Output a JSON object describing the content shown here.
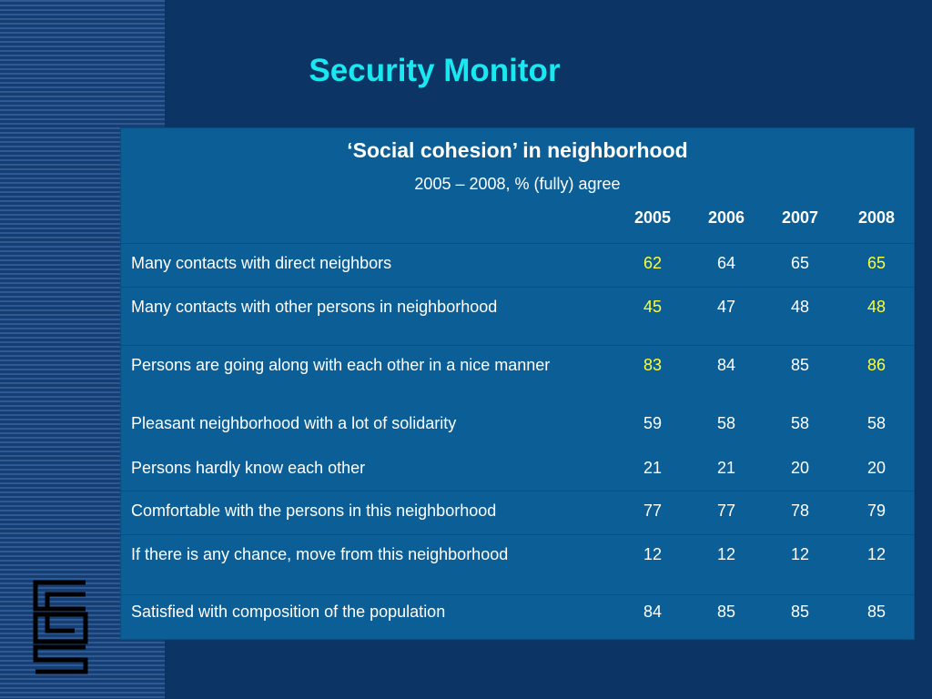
{
  "slide": {
    "title": "Security Monitor"
  },
  "table": {
    "title": "‘Social cohesion’ in neighborhood",
    "subtitle": "2005 – 2008, % (fully) agree",
    "years": [
      "2005",
      "2006",
      "2007",
      "2008"
    ],
    "highlight_color": "#ffff33",
    "rows": [
      {
        "label": "Many contacts with direct neighbors",
        "values": [
          "62",
          "64",
          "65",
          "65"
        ],
        "highlighted_columns": [
          0,
          3
        ]
      },
      {
        "label": "Many contacts with other persons in neighborhood",
        "values": [
          "45",
          "47",
          "48",
          "48"
        ],
        "highlighted_columns": [
          0,
          3
        ]
      },
      {
        "label": "Persons are going along with each other in a nice manner",
        "values": [
          "83",
          "84",
          "85",
          "86"
        ],
        "highlighted_columns": [
          0,
          3
        ]
      },
      {
        "label": "Pleasant neighborhood with a lot of solidarity",
        "values": [
          "59",
          "58",
          "58",
          "58"
        ],
        "highlighted_columns": []
      },
      {
        "label": "Persons hardly know each other",
        "values": [
          "21",
          "21",
          "20",
          "20"
        ],
        "highlighted_columns": []
      },
      {
        "label": "Comfortable with the persons in this neighborhood",
        "values": [
          "77",
          "77",
          "78",
          "79"
        ],
        "highlighted_columns": []
      },
      {
        "label": "If there is any chance, move from this neighborhood",
        "values": [
          "12",
          "12",
          "12",
          "12"
        ],
        "highlighted_columns": []
      },
      {
        "label": "Satisfied with composition of the population",
        "values": [
          "84",
          "85",
          "85",
          "85"
        ],
        "highlighted_columns": []
      }
    ]
  },
  "logo": {
    "icon": "cbs-logo",
    "color": "#000000"
  }
}
